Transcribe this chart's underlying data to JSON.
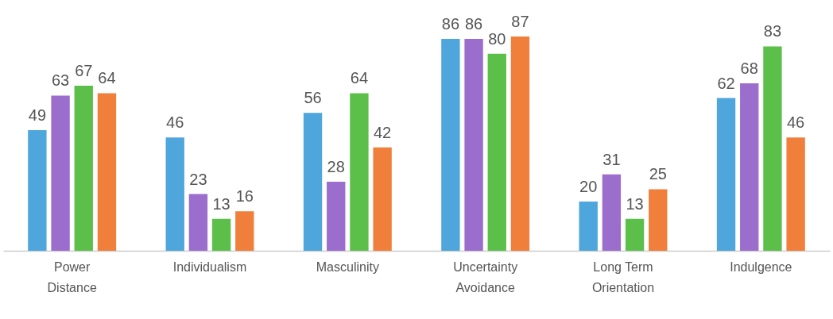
{
  "chart_data": {
    "type": "bar",
    "categories": [
      "Power\nDistance",
      "Individualism",
      "Masculinity",
      "Uncertainty\nAvoidance",
      "Long Term\nOrientation",
      "Indulgence"
    ],
    "series": [
      {
        "color": "#4ea6dc",
        "values": [
          49,
          46,
          56,
          86,
          20,
          62
        ]
      },
      {
        "color": "#9b6dcc",
        "values": [
          63,
          23,
          28,
          86,
          31,
          68
        ]
      },
      {
        "color": "#5cbf4a",
        "values": [
          67,
          13,
          64,
          80,
          13,
          83
        ]
      },
      {
        "color": "#ef7f3a",
        "values": [
          64,
          16,
          42,
          87,
          25,
          46
        ]
      }
    ],
    "data_labels": true,
    "legend": false,
    "grid": false
  }
}
